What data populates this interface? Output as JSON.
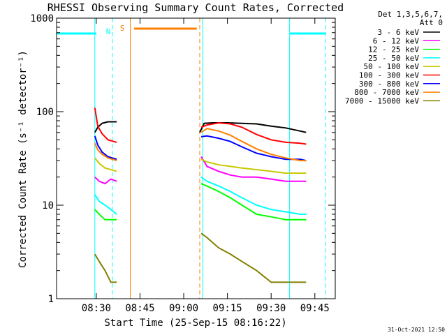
{
  "colors": {
    "background": "#ffffff",
    "axes": "#000000",
    "cyan": "#00ffff",
    "orange": "#ff8000"
  },
  "chart_data": {
    "type": "line",
    "title": "RHESSI Observing Summary Count Rates, Corrected",
    "xlabel": "Start Time (25-Sep-15 08:16:22)",
    "ylabel": "Corrected Count Rate (s⁻¹ detector⁻¹)",
    "yscale": "log",
    "xlim": [
      "08:16:22",
      "09:52:00"
    ],
    "ylim": [
      1,
      1000
    ],
    "x_ticks": [
      "08:30",
      "08:45",
      "09:00",
      "09:15",
      "09:30",
      "09:45"
    ],
    "y_ticks": [
      "1",
      "10",
      "100",
      "1000"
    ],
    "legend_header": [
      "Det 1,3,5,6,7,",
      "Att 0"
    ],
    "legend_placement": "right",
    "timestamp": "31-Oct-2021 12:50",
    "markers": [
      {
        "label": "N",
        "color": "#00ffff"
      },
      {
        "label": "S",
        "color": "#ff8000"
      }
    ],
    "segments": [
      {
        "start": "08:29:30",
        "end": "08:37:15"
      },
      {
        "start": "09:06:30",
        "end": "09:42:45"
      }
    ],
    "series": [
      {
        "name": "3 - 6 keV",
        "color": "#000000",
        "x": [
          "08:29:30",
          "08:30:30",
          "08:32:00",
          "08:34:00",
          "08:37:00",
          "09:05:30",
          "09:07:00",
          "09:10:00",
          "09:15:00",
          "09:20:00",
          "09:25:00",
          "09:30:00",
          "09:35:00",
          "09:40:00",
          "09:42:00"
        ],
        "y": [
          60,
          68,
          75,
          78,
          78,
          60,
          75,
          76,
          76,
          75,
          74,
          70,
          67,
          62,
          60
        ]
      },
      {
        "name": "6 - 12 keV",
        "color": "#ff00ff",
        "x": [
          "08:29:30",
          "08:31:00",
          "08:33:00",
          "08:35:00",
          "08:37:00",
          "09:06:00",
          "09:08:00",
          "09:12:00",
          "09:16:00",
          "09:20:00",
          "09:25:00",
          "09:30:00",
          "09:35:00",
          "09:40:00",
          "09:42:00"
        ],
        "y": [
          20,
          18,
          17,
          19,
          18,
          33,
          26,
          23,
          21,
          20,
          20,
          19,
          18,
          18,
          18
        ]
      },
      {
        "name": "12 - 25 keV",
        "color": "#00ff00",
        "x": [
          "08:29:30",
          "08:31:00",
          "08:33:00",
          "08:35:00",
          "08:37:00",
          "09:06:00",
          "09:08:00",
          "09:12:00",
          "09:16:00",
          "09:20:00",
          "09:25:00",
          "09:30:00",
          "09:35:00",
          "09:40:00",
          "09:42:00"
        ],
        "y": [
          9,
          8,
          7,
          7,
          7,
          17,
          16,
          14,
          12,
          10,
          8,
          7.5,
          7,
          7,
          7
        ]
      },
      {
        "name": "25 - 50 keV",
        "color": "#00ffff",
        "x": [
          "08:29:30",
          "08:31:00",
          "08:33:00",
          "08:35:00",
          "08:37:00",
          "09:06:00",
          "09:08:00",
          "09:12:00",
          "09:16:00",
          "09:20:00",
          "09:25:00",
          "09:30:00",
          "09:35:00",
          "09:40:00",
          "09:42:00"
        ],
        "y": [
          13,
          11,
          10,
          9,
          8,
          20,
          18,
          16,
          14,
          12,
          10,
          9,
          8.5,
          8,
          8
        ]
      },
      {
        "name": "50 - 100 keV",
        "color": "#c8c800",
        "x": [
          "08:29:30",
          "08:31:00",
          "08:33:00",
          "08:35:00",
          "08:37:00",
          "09:06:00",
          "09:08:00",
          "09:12:00",
          "09:16:00",
          "09:20:00",
          "09:25:00",
          "09:30:00",
          "09:35:00",
          "09:40:00",
          "09:42:00"
        ],
        "y": [
          32,
          28,
          25,
          24,
          23,
          31,
          29,
          27,
          26,
          25,
          24,
          23,
          22,
          22,
          22
        ]
      },
      {
        "name": "100 - 300 keV",
        "color": "#ff0000",
        "x": [
          "08:29:30",
          "08:30:30",
          "08:32:00",
          "08:34:00",
          "08:37:00",
          "09:06:00",
          "09:08:00",
          "09:12:00",
          "09:16:00",
          "09:20:00",
          "09:25:00",
          "09:30:00",
          "09:35:00",
          "09:40:00",
          "09:42:00"
        ],
        "y": [
          110,
          70,
          58,
          50,
          47,
          68,
          72,
          76,
          74,
          68,
          57,
          50,
          47,
          46,
          45
        ]
      },
      {
        "name": "300 - 800 keV",
        "color": "#0000ff",
        "x": [
          "08:29:30",
          "08:30:30",
          "08:32:00",
          "08:34:00",
          "08:37:00",
          "09:06:00",
          "09:08:00",
          "09:12:00",
          "09:16:00",
          "09:20:00",
          "09:25:00",
          "09:30:00",
          "09:35:00",
          "09:40:00",
          "09:42:00"
        ],
        "y": [
          55,
          44,
          37,
          33,
          31,
          54,
          55,
          52,
          48,
          42,
          36,
          33,
          31,
          31,
          30
        ]
      },
      {
        "name": "800 - 7000 keV",
        "color": "#ff8000",
        "x": [
          "08:29:30",
          "08:30:30",
          "08:32:00",
          "08:34:00",
          "08:37:00",
          "09:06:00",
          "09:08:00",
          "09:12:00",
          "09:16:00",
          "09:20:00",
          "09:25:00",
          "09:30:00",
          "09:35:00",
          "09:40:00",
          "09:42:00"
        ],
        "y": [
          46,
          39,
          35,
          32,
          30,
          60,
          66,
          62,
          56,
          48,
          40,
          35,
          32,
          30,
          30
        ]
      },
      {
        "name": "7000 - 15000 keV",
        "color": "#808000",
        "x": [
          "08:29:30",
          "08:31:00",
          "08:33:00",
          "08:35:00",
          "08:37:00",
          "09:06:00",
          "09:08:00",
          "09:12:00",
          "09:16:00",
          "09:20:00",
          "09:25:00",
          "09:30:00",
          "09:35:00",
          "09:40:00",
          "09:42:00"
        ],
        "y": [
          3,
          2.5,
          2,
          1.5,
          1.5,
          5,
          4.5,
          3.5,
          3,
          2.5,
          2,
          1.5,
          1.5,
          1.5,
          1.5
        ]
      }
    ]
  }
}
